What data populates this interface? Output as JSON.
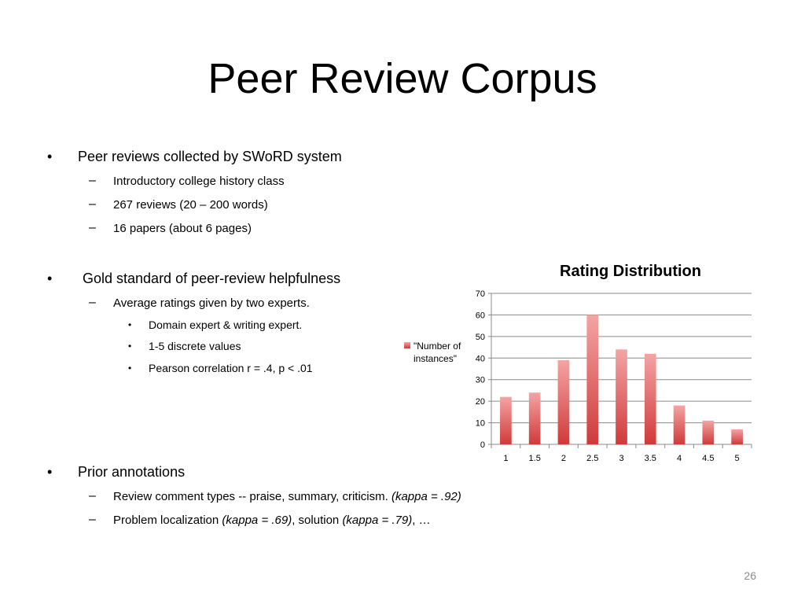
{
  "slide": {
    "title": "Peer Review Corpus",
    "page_number": "26"
  },
  "bullets": {
    "b1": {
      "text": "Peer reviews collected by SWoRD system",
      "sub": [
        "Introductory college history class",
        "267 reviews (20 – 200 words)",
        "16 papers (about 6 pages)"
      ]
    },
    "b2": {
      "text": "Gold standard of peer-review helpfulness",
      "sub": "Average ratings given by two experts.",
      "subsub": [
        "Domain expert & writing expert.",
        "1-5 discrete values",
        "Pearson correlation r = .4, p < .01"
      ]
    },
    "b3": {
      "text": "Prior annotations",
      "sub1": {
        "plain": "Review comment types -- praise, summary, criticism. ",
        "italic": "(kappa = .92)"
      },
      "sub2": {
        "p1": "Problem localization ",
        "i1": "(kappa = .69)",
        "p2": ", solution ",
        "i2": "(kappa = .79)",
        "p3": ", …"
      }
    }
  },
  "markers": {
    "bullet": "•",
    "dash": "–"
  },
  "chart_data": {
    "type": "bar",
    "title": "Rating Distribution",
    "categories": [
      "1",
      "1.5",
      "2",
      "2.5",
      "3",
      "3.5",
      "4",
      "4.5",
      "5"
    ],
    "series": [
      {
        "name": "\"Number of instances\"",
        "values": [
          22,
          24,
          39,
          60,
          44,
          42,
          18,
          11,
          7
        ]
      }
    ],
    "legend_lines": [
      "\"Number of",
      "instances\""
    ],
    "ylim": [
      0,
      70
    ],
    "yticks": [
      "0",
      "10",
      "20",
      "30",
      "40",
      "50",
      "60",
      "70"
    ],
    "grid": true,
    "legend_position": "left",
    "bar_color_top": "#f4a4a4",
    "bar_color_bottom": "#d03a3a"
  }
}
